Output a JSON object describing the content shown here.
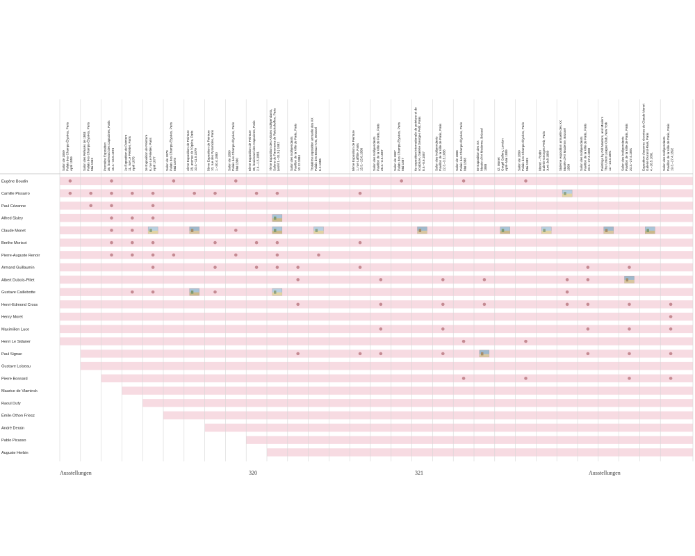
{
  "columns": [
    "Salon de 1859\nPalais des Champs-Élysées, Paris\nApril 1859",
    "Salon des Refusés de 1863\nPalais des Champs-Élysées, Paris\nMai 1863",
    "Première Exposition\n35, boulevard des Capucines, Paris\n15.4.–15.5.1874",
    "2e Exposition de Peinture\n11, rue Le Peletier, Paris\nApril 1876",
    "3e Exposition de Peinture\n6, rue Le Peletier, Paris\nApril 1877",
    "Salon de 1878\nPalais des Champs-Élysées, Paris\nMai 1878",
    "4ème Exposition de Peinture\n28, avenue de l'Opéra, Paris\n10.4.–11.5.1879",
    "5ème Exposition de Peinture\n10, rue des Pyramides, Paris\n1.–30.4.1880",
    "Salon de 1880\nPalais des Champs-Élysées, Paris\nMai 1880",
    "6ème Exposition de Peinture\n35, boulevard des Capucines, Paris\n2.4.–1.5.1881",
    "7ème Exposition des Artistes Indépendants,\nSalons du Panorama de Reichshoffen, Paris\n(wohl 1.–31.3.) 1882",
    "Salon des Indépendants\nPavillon de la Ville de Paris, Paris\n10.12.1884",
    "Troisième exposition annuelle des XX\nPalais des Beaux-Arts, Brüssel\n6.2.1886",
    "",
    "8ème Exposition de Peinture\n1, rue Laffitte, Paris\n15.5.–15.6.1886",
    "Salon des Indépendants\nPavillon de la Ville de Paris, Paris\n26.3.–3.5.1887",
    "Salon de 1887\nPalais des Champs-Élysées, Paris\nMai 1887",
    "6e exposition internationale de peinture et de\nsculpture, Galerie Georges Petit, Paris\n8.5.–8.6.1887",
    "Salon des Indépendants\nPavillon de la Ville de Paris, Paris\n22.3.–3.5.1888",
    "Salon de 1888\nPalais des Champs-Élysées, Paris\nMai 1888",
    "5e Exposition des XX\nMusée d'Art Moderne, Brüssel\n1888",
    "Cl. Monet\nGoupil Gallery, London\nApril–Mai 1889",
    "Salon de 1889\nPalais des Champs-Élysées, Paris\nMai 1889",
    "Monet – Rodin\nGalerie Georges Petit, Paris\nJuni–Juli 1889",
    "Sixième exposition annuelle des XX\nMusée d'Art Moderne, Brüssel\n1889",
    "Salon des Indépendants\nPavillon de la Ville de Paris, Paris\n20.3.–27.4.1890",
    "Paintings by Old Masters, and Modern\nThe Union League Club, New York\n12.–14.3.1891",
    "Salon des Indépendants\nPavillon de la Ville de Paris, Paris\n20.3.–27.4.1891",
    "Exposition d'œuvres récentes de Claude Monet\nGalerie Durand-Ruel, Paris\n4.–16.5.1891",
    "Salon des Indépendants\nPavillon de la Ville de Paris, Paris\n19.3.–27.4.1892"
  ],
  "artists": [
    {
      "name": "Eugène Boudin",
      "dots": [
        0,
        2,
        5,
        8,
        16,
        19,
        22
      ],
      "thumbs": []
    },
    {
      "name": "Camille Pissarro",
      "dots": [
        0,
        1,
        2,
        3,
        4,
        6,
        7,
        9,
        10,
        14
      ],
      "thumbs": [
        24
      ]
    },
    {
      "name": "Paul Cézanne",
      "dots": [
        1,
        2,
        4
      ],
      "thumbs": []
    },
    {
      "name": "Alfred Sisley",
      "dots": [
        2,
        3,
        4
      ],
      "thumbs": [
        10
      ]
    },
    {
      "name": "Claude Monet",
      "dots": [
        2,
        3,
        8
      ],
      "thumbs": [
        4,
        6,
        10,
        12,
        17,
        21,
        23,
        26,
        28
      ]
    },
    {
      "name": "Berthe Morisot",
      "dots": [
        2,
        3,
        4,
        7,
        9,
        10,
        14
      ],
      "thumbs": []
    },
    {
      "name": "Pierre-Auguste Renoir",
      "dots": [
        2,
        3,
        4,
        5,
        8,
        10,
        12
      ],
      "thumbs": []
    },
    {
      "name": "Armand Guillaumin",
      "dots": [
        4,
        7,
        9,
        10,
        11,
        14,
        25,
        27
      ],
      "thumbs": []
    },
    {
      "name": "Albert Dubois-Pillet",
      "dots": [
        11,
        15,
        18,
        20,
        24,
        25
      ],
      "thumbs": [
        27
      ]
    },
    {
      "name": "Gustave Caillebotte",
      "dots": [
        3,
        4,
        7,
        24
      ],
      "thumbs": [
        6,
        10
      ]
    },
    {
      "name": "Henri-Edmond Cross",
      "dots": [
        11,
        15,
        18,
        20,
        24,
        25,
        27,
        29
      ],
      "thumbs": []
    },
    {
      "name": "Henry Moret",
      "dots": [
        29
      ],
      "thumbs": []
    },
    {
      "name": "Maximilien Luce",
      "dots": [
        15,
        18,
        25,
        27,
        29
      ],
      "thumbs": []
    },
    {
      "name": "Henri Le Sidaner",
      "dots": [
        19,
        22
      ],
      "thumbs": []
    },
    {
      "name": "Paul Signac",
      "dots": [
        11,
        14,
        15,
        18,
        25,
        27,
        29
      ],
      "thumbs": [
        20
      ]
    },
    {
      "name": "Gustave Loiseau",
      "dots": [],
      "thumbs": []
    },
    {
      "name": "Pierre Bonnard",
      "dots": [
        19,
        22,
        27,
        29
      ],
      "thumbs": []
    },
    {
      "name": "Maurice de Vlaminck",
      "dots": [],
      "thumbs": []
    },
    {
      "name": "Raoul Dufy",
      "dots": [],
      "thumbs": []
    },
    {
      "name": "Émile-Othon Friesz",
      "dots": [],
      "thumbs": []
    },
    {
      "name": "André Derain",
      "dots": [],
      "thumbs": []
    },
    {
      "name": "Pablo Picasso",
      "dots": [],
      "thumbs": []
    },
    {
      "name": "Auguste Herbin",
      "dots": [],
      "thumbs": []
    }
  ],
  "pink_start": [
    0,
    0,
    0,
    0,
    0,
    0,
    0,
    0,
    0,
    0,
    0,
    0,
    0,
    0,
    1,
    1,
    2,
    3,
    4,
    5,
    7,
    9,
    10
  ],
  "footer": {
    "left": "Ausstellungen",
    "page_left": "320",
    "page_right": "321",
    "right": "Ausstellungen"
  },
  "colors": {
    "pink": "#f7dbe2",
    "dot": "#c48a92",
    "grid": "#d6d6d6"
  }
}
